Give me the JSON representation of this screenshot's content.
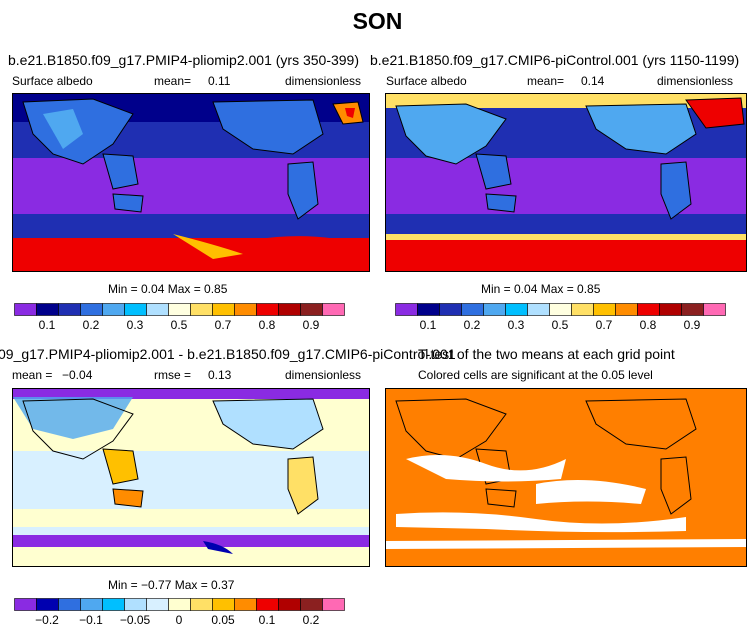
{
  "figure": {
    "title": "SON"
  },
  "panels": {
    "top_left": {
      "title": "b.e21.B1850.f09_g17.PMIP4-pliomip2.001 (yrs 350-399)",
      "variable": "Surface albedo",
      "stat_label": "mean=",
      "stat_value": "0.11",
      "units": "dimensionless",
      "minmax": "Min =     0.04  Max =      0.85"
    },
    "top_right": {
      "title": "b.e21.B1850.f09_g17.CMIP6-piControl.001 (yrs 1150-1199)",
      "variable": "Surface albedo",
      "stat_label": "mean=",
      "stat_value": "0.14",
      "units": "dimensionless",
      "minmax": "Min =     0.04  Max =      0.85"
    },
    "bottom_left": {
      "title": "09_g17.PMIP4-pliomip2.001 - b.e21.B1850.f09_g17.CMIP6-piControl.001",
      "mean_label": "mean =",
      "mean_value": "−0.04",
      "rmse_label": "rmse =",
      "rmse_value": "0.13",
      "units": "dimensionless",
      "minmax": "Min =   −0.77  Max =      0.37"
    },
    "bottom_right": {
      "title": "T-test of the two means at each grid point",
      "subtitle": "Colored cells are significant at the 0.05 level",
      "significant_color": "#FF7F00"
    }
  },
  "colorbars": {
    "albedo": {
      "colors": [
        "#8A2BE2",
        "#00008B",
        "#1F2FB2",
        "#2F6FE0",
        "#4FA8F0",
        "#00BFFF",
        "#B0E0FF",
        "#FFFFE0",
        "#FFE066",
        "#FFC000",
        "#FF8C00",
        "#EE0000",
        "#B00000",
        "#8B2020",
        "#FF69B4"
      ],
      "labels": [
        "0.1",
        "0.2",
        "0.3",
        "0.5",
        "0.7",
        "0.8",
        "0.9"
      ]
    },
    "difference": {
      "colors": [
        "#8A2BE2",
        "#0000B0",
        "#2F6FE0",
        "#4FA8F0",
        "#00BFFF",
        "#B0E0FF",
        "#D8F0FF",
        "#FFFFD0",
        "#FFE066",
        "#FFC000",
        "#FF8C00",
        "#EE0000",
        "#B00000",
        "#8B2020",
        "#FF69B4"
      ],
      "labels": [
        "−0.2",
        "−0.1",
        "−0.05",
        "0",
        "0.05",
        "0.1",
        "0.2"
      ]
    }
  }
}
